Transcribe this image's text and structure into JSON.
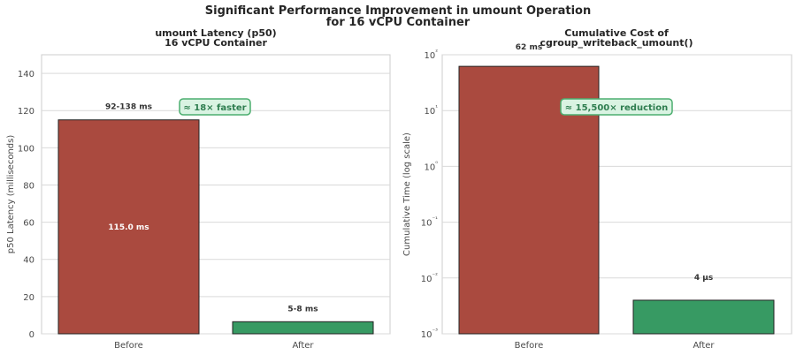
{
  "figure": {
    "title_line1": "Significant Performance Improvement in umount Operation",
    "title_line2": "for 16 vCPU Container"
  },
  "colors": {
    "before": "#aa4a3f",
    "after": "#379a63",
    "callout_fill": "#d9f3e2",
    "callout_border": "#4cae6f",
    "grid": "#d9d9d9",
    "spine": "#cccccc"
  },
  "chart_data": [
    {
      "type": "bar",
      "title_line1": "umount Latency (p50)",
      "title_line2": "16 vCPU Container",
      "xlabel": "",
      "ylabel": "p50 Latency (milliseconds)",
      "categories": [
        "Before",
        "After"
      ],
      "values": [
        115.0,
        6.5
      ],
      "ylim": [
        0,
        150
      ],
      "yticks": [
        0,
        20,
        40,
        60,
        80,
        100,
        120,
        140
      ],
      "yscale": "linear",
      "grid": true,
      "bar_labels": [
        "92-138 ms",
        "5-8 ms"
      ],
      "inner_label": "115.0 ms",
      "callout": "≈ 18× faster"
    },
    {
      "type": "bar",
      "title_line1": "Cumulative Cost of",
      "title_line2": "cgroup_writeback_umount()",
      "xlabel": "",
      "ylabel": "Cumulative Time (log scale)",
      "categories": [
        "Before",
        "After"
      ],
      "values": [
        62,
        0.004
      ],
      "ylim": [
        0.001,
        100
      ],
      "ytick_exponents": [
        -3,
        -2,
        -1,
        0,
        1,
        2
      ],
      "yscale": "log",
      "grid": true,
      "bar_labels": [
        "62 ms",
        "4 μs"
      ],
      "callout": "≈ 15,500× reduction"
    }
  ]
}
